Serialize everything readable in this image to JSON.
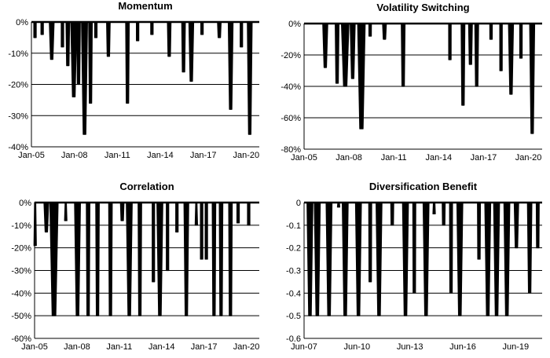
{
  "colors": {
    "line": "#000000",
    "grid": "#000000",
    "background": "#ffffff"
  },
  "chart_data": [
    {
      "type": "area",
      "title": "Momentum",
      "xlabel": "",
      "ylabel": "",
      "x_range": [
        "2005-01",
        "2020-12"
      ],
      "ylim": [
        -40,
        0
      ],
      "y_ticks": [
        0,
        -10,
        -20,
        -30,
        -40
      ],
      "y_tick_labels": [
        "0%",
        "-10%",
        "-20%",
        "-30%",
        "-40%"
      ],
      "x_ticks": [
        "2005-01",
        "2008-01",
        "2011-01",
        "2014-01",
        "2017-01",
        "2020-01"
      ],
      "x_tick_labels": [
        "Jan-05",
        "Jan-08",
        "Jan-11",
        "Jan-14",
        "Jan-17",
        "Jan-20"
      ],
      "grid": "horizontal",
      "legend": "none",
      "drawdowns": [
        {
          "start": "2005-03",
          "end": "2005-05",
          "trough": -5
        },
        {
          "start": "2005-09",
          "end": "2005-11",
          "trough": -4
        },
        {
          "start": "2006-04",
          "end": "2006-08",
          "trough": -12
        },
        {
          "start": "2007-02",
          "end": "2007-04",
          "trough": -8
        },
        {
          "start": "2007-06",
          "end": "2007-09",
          "trough": -14
        },
        {
          "start": "2007-10",
          "end": "2008-03",
          "trough": -24
        },
        {
          "start": "2008-03",
          "end": "2008-06",
          "trough": -20
        },
        {
          "start": "2008-07",
          "end": "2008-12",
          "trough": -36
        },
        {
          "start": "2009-01",
          "end": "2009-04",
          "trough": -26
        },
        {
          "start": "2009-06",
          "end": "2009-08",
          "trough": -5
        },
        {
          "start": "2010-04",
          "end": "2010-07",
          "trough": -11
        },
        {
          "start": "2011-08",
          "end": "2011-11",
          "trough": -26
        },
        {
          "start": "2012-05",
          "end": "2012-07",
          "trough": -6
        },
        {
          "start": "2013-05",
          "end": "2013-07",
          "trough": -4
        },
        {
          "start": "2014-07",
          "end": "2014-10",
          "trough": -11
        },
        {
          "start": "2015-07",
          "end": "2015-10",
          "trough": -16
        },
        {
          "start": "2016-01",
          "end": "2016-05",
          "trough": -19
        },
        {
          "start": "2016-11",
          "end": "2017-01",
          "trough": -4
        },
        {
          "start": "2018-01",
          "end": "2018-04",
          "trough": -5
        },
        {
          "start": "2018-10",
          "end": "2019-02",
          "trough": -28
        },
        {
          "start": "2019-08",
          "end": "2019-10",
          "trough": -8
        },
        {
          "start": "2020-02",
          "end": "2020-06",
          "trough": -36
        }
      ]
    },
    {
      "type": "area",
      "title": "Volatility Switching",
      "xlabel": "",
      "ylabel": "",
      "x_range": [
        "2005-01",
        "2020-12"
      ],
      "ylim": [
        -80,
        0
      ],
      "y_ticks": [
        0,
        -20,
        -40,
        -60,
        -80
      ],
      "y_tick_labels": [
        "0%",
        "-20%",
        "-40%",
        "-60%",
        "-80%"
      ],
      "x_ticks": [
        "2005-01",
        "2008-01",
        "2011-01",
        "2014-01",
        "2017-01",
        "2020-01"
      ],
      "x_tick_labels": [
        "Jan-05",
        "Jan-08",
        "Jan-11",
        "Jan-14",
        "Jan-17",
        "Jan-20"
      ],
      "grid": "horizontal",
      "legend": "none",
      "drawdowns": [
        {
          "start": "2006-04",
          "end": "2006-08",
          "trough": -28
        },
        {
          "start": "2007-02",
          "end": "2007-05",
          "trough": -38
        },
        {
          "start": "2007-07",
          "end": "2008-01",
          "trough": -40
        },
        {
          "start": "2008-02",
          "end": "2008-06",
          "trough": -35
        },
        {
          "start": "2008-08",
          "end": "2009-02",
          "trough": -67
        },
        {
          "start": "2009-05",
          "end": "2009-07",
          "trough": -8
        },
        {
          "start": "2010-04",
          "end": "2010-07",
          "trough": -10
        },
        {
          "start": "2011-07",
          "end": "2011-10",
          "trough": -40
        },
        {
          "start": "2014-09",
          "end": "2014-11",
          "trough": -23
        },
        {
          "start": "2015-07",
          "end": "2015-10",
          "trough": -52
        },
        {
          "start": "2016-01",
          "end": "2016-04",
          "trough": -26
        },
        {
          "start": "2016-06",
          "end": "2016-09",
          "trough": -40
        },
        {
          "start": "2017-06",
          "end": "2017-08",
          "trough": -10
        },
        {
          "start": "2018-02",
          "end": "2018-04",
          "trough": -30
        },
        {
          "start": "2018-09",
          "end": "2019-01",
          "trough": -45
        },
        {
          "start": "2019-06",
          "end": "2019-08",
          "trough": -22
        },
        {
          "start": "2020-02",
          "end": "2020-06",
          "trough": -70
        }
      ]
    },
    {
      "type": "area",
      "title": "Correlation",
      "xlabel": "",
      "ylabel": "",
      "x_range": [
        "2005-01",
        "2020-12"
      ],
      "ylim": [
        -60,
        0
      ],
      "y_ticks": [
        0,
        -10,
        -20,
        -30,
        -40,
        -50,
        -60
      ],
      "y_tick_labels": [
        "0%",
        "-10%",
        "-20%",
        "-30%",
        "-40%",
        "-50%",
        "-60%"
      ],
      "x_ticks": [
        "2005-01",
        "2008-01",
        "2011-01",
        "2014-01",
        "2017-01",
        "2020-01"
      ],
      "x_tick_labels": [
        "Jan-05",
        "Jan-08",
        "Jan-11",
        "Jan-14",
        "Jan-17",
        "Jan-20"
      ],
      "grid": "horizontal",
      "legend": "none",
      "drawdowns": [
        {
          "start": "2005-01",
          "end": "2005-02",
          "trough": -19
        },
        {
          "start": "2005-09",
          "end": "2006-01",
          "trough": -13
        },
        {
          "start": "2006-02",
          "end": "2006-09",
          "trough": -50
        },
        {
          "start": "2007-03",
          "end": "2007-04",
          "trough": -8
        },
        {
          "start": "2007-11",
          "end": "2008-04",
          "trough": -50
        },
        {
          "start": "2008-09",
          "end": "2008-12",
          "trough": -50
        },
        {
          "start": "2009-05",
          "end": "2009-08",
          "trough": -50
        },
        {
          "start": "2010-04",
          "end": "2010-07",
          "trough": -50
        },
        {
          "start": "2011-02",
          "end": "2011-05",
          "trough": -8
        },
        {
          "start": "2011-07",
          "end": "2011-12",
          "trough": -50
        },
        {
          "start": "2012-05",
          "end": "2012-08",
          "trough": -50
        },
        {
          "start": "2013-05",
          "end": "2013-07",
          "trough": -35
        },
        {
          "start": "2013-09",
          "end": "2014-02",
          "trough": -50
        },
        {
          "start": "2014-05",
          "end": "2014-07",
          "trough": -30
        },
        {
          "start": "2015-01",
          "end": "2015-03",
          "trough": -13
        },
        {
          "start": "2015-08",
          "end": "2015-12",
          "trough": -50
        },
        {
          "start": "2016-06",
          "end": "2016-07",
          "trough": -10
        },
        {
          "start": "2016-10",
          "end": "2016-12",
          "trough": -25
        },
        {
          "start": "2017-02",
          "end": "2017-04",
          "trough": -25
        },
        {
          "start": "2017-08",
          "end": "2017-11",
          "trough": -50
        },
        {
          "start": "2018-02",
          "end": "2018-05",
          "trough": -50
        },
        {
          "start": "2018-10",
          "end": "2019-01",
          "trough": -50
        },
        {
          "start": "2019-05",
          "end": "2019-07",
          "trough": -9
        },
        {
          "start": "2020-02",
          "end": "2020-04",
          "trough": -10
        }
      ]
    },
    {
      "type": "area",
      "title": "Diversification Benefit",
      "xlabel": "",
      "ylabel": "",
      "x_range": [
        "2007-06",
        "2020-12"
      ],
      "ylim": [
        -0.6,
        0
      ],
      "y_ticks": [
        0,
        -0.1,
        -0.2,
        -0.3,
        -0.4,
        -0.5,
        -0.6
      ],
      "y_tick_labels": [
        "0",
        "-0.1",
        "-0.2",
        "-0.3",
        "-0.4",
        "-0.5",
        "-0.6"
      ],
      "x_ticks": [
        "2007-06",
        "2010-06",
        "2013-06",
        "2016-06",
        "2019-06"
      ],
      "x_tick_labels": [
        "Jun-07",
        "Jun-10",
        "Jun-13",
        "Jun-16",
        "Jun-19"
      ],
      "grid": "horizontal",
      "legend": "none",
      "drawdowns": [
        {
          "start": "2007-08",
          "end": "2007-12",
          "trough": -0.5
        },
        {
          "start": "2008-01",
          "end": "2008-05",
          "trough": -0.5
        },
        {
          "start": "2008-09",
          "end": "2009-01",
          "trough": -0.5
        },
        {
          "start": "2009-05",
          "end": "2009-06",
          "trough": -0.02
        },
        {
          "start": "2009-08",
          "end": "2009-12",
          "trough": -0.5
        },
        {
          "start": "2010-05",
          "end": "2010-09",
          "trough": -0.5
        },
        {
          "start": "2011-02",
          "end": "2011-04",
          "trough": -0.35
        },
        {
          "start": "2011-07",
          "end": "2011-11",
          "trough": -0.5
        },
        {
          "start": "2012-05",
          "end": "2012-07",
          "trough": -0.1
        },
        {
          "start": "2013-01",
          "end": "2013-05",
          "trough": -0.5
        },
        {
          "start": "2013-08",
          "end": "2013-10",
          "trough": -0.4
        },
        {
          "start": "2014-03",
          "end": "2014-07",
          "trough": -0.5
        },
        {
          "start": "2014-10",
          "end": "2014-11",
          "trough": -0.05
        },
        {
          "start": "2015-04",
          "end": "2015-06",
          "trough": -0.1
        },
        {
          "start": "2015-09",
          "end": "2015-11",
          "trough": -0.4
        },
        {
          "start": "2016-02",
          "end": "2016-06",
          "trough": -0.5
        },
        {
          "start": "2017-04",
          "end": "2017-06",
          "trough": -0.25
        },
        {
          "start": "2017-09",
          "end": "2018-01",
          "trough": -0.5
        },
        {
          "start": "2018-03",
          "end": "2018-07",
          "trough": -0.5
        },
        {
          "start": "2018-10",
          "end": "2019-02",
          "trough": -0.5
        },
        {
          "start": "2019-05",
          "end": "2019-08",
          "trough": -0.2
        },
        {
          "start": "2020-02",
          "end": "2020-05",
          "trough": -0.4
        },
        {
          "start": "2020-08",
          "end": "2020-10",
          "trough": -0.2
        }
      ]
    }
  ]
}
